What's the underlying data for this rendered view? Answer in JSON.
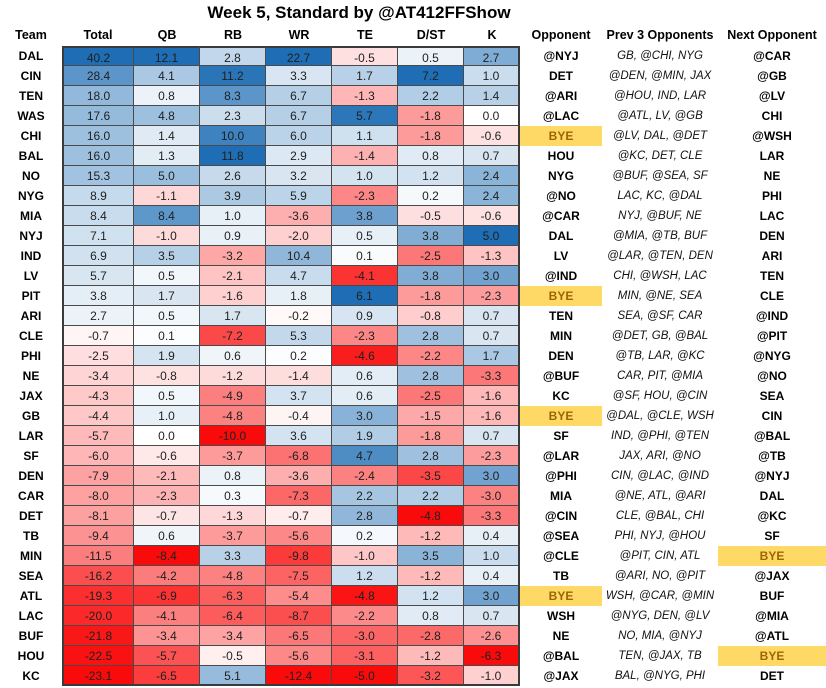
{
  "title": "Week 5, Standard by @AT412FFShow",
  "columns": [
    "Team",
    "Total",
    "QB",
    "RB",
    "WR",
    "TE",
    "D/ST",
    "K",
    "Opponent",
    "Prev 3 Opponents",
    "Next Opponent"
  ],
  "colors": {
    "scale_max_blue": "#1F6EB5",
    "scale_mid_white": "#FFFFFF",
    "scale_min_red": "#FA0B0B",
    "bye_bg": "#FFD966",
    "bye_text": "#9C6500",
    "grid_border": "#4a4a4a"
  },
  "chart_data": {
    "type": "heatmap",
    "title": "Week 5, Standard by @AT412FFShow",
    "columns": [
      "Team",
      "Total",
      "QB",
      "RB",
      "WR",
      "TE",
      "D/ST",
      "K",
      "Opponent",
      "Prev 3 Opponents",
      "Next Opponent"
    ],
    "numeric_columns": [
      "Total",
      "QB",
      "RB",
      "WR",
      "TE",
      "D/ST",
      "K"
    ],
    "color_scale": {
      "scope": "per-column",
      "midpoint": 0,
      "min_color": "#FA0B0B",
      "mid_color": "#FFFFFF",
      "max_color": "#1F6EB5"
    },
    "bye_highlight": "BYE",
    "rows": [
      [
        "DAL",
        "40.2",
        "12.1",
        "2.8",
        "22.7",
        "-0.5",
        "0.5",
        "2.7",
        "@NYJ",
        "GB, @CHI, NYG",
        "@CAR"
      ],
      [
        "CIN",
        "28.4",
        "4.1",
        "11.2",
        "3.3",
        "1.7",
        "7.2",
        "1.0",
        "DET",
        "@DEN, @MIN, JAX",
        "@GB"
      ],
      [
        "TEN",
        "18.0",
        "0.8",
        "8.3",
        "6.7",
        "-1.3",
        "2.2",
        "1.4",
        "@ARI",
        "@HOU, IND, LAR",
        "@LV"
      ],
      [
        "WAS",
        "17.6",
        "4.8",
        "2.3",
        "6.7",
        "5.7",
        "-1.8",
        "0.0",
        "@LAC",
        "@ATL, LV, @GB",
        "CHI"
      ],
      [
        "CHI",
        "16.0",
        "1.4",
        "10.0",
        "6.0",
        "1.1",
        "-1.8",
        "-0.6",
        "BYE",
        "@LV, DAL, @DET",
        "@WSH"
      ],
      [
        "BAL",
        "16.0",
        "1.3",
        "11.8",
        "2.9",
        "-1.4",
        "0.8",
        "0.7",
        "HOU",
        "@KC, DET, CLE",
        "LAR"
      ],
      [
        "NO",
        "15.3",
        "5.0",
        "2.6",
        "3.2",
        "1.0",
        "1.2",
        "2.4",
        "NYG",
        "@BUF, @SEA, SF",
        "NE"
      ],
      [
        "NYG",
        "8.9",
        "-1.1",
        "3.9",
        "5.9",
        "-2.3",
        "0.2",
        "2.4",
        "@NO",
        "LAC, KC, @DAL",
        "PHI"
      ],
      [
        "MIA",
        "8.4",
        "8.4",
        "1.0",
        "-3.6",
        "3.8",
        "-0.5",
        "-0.6",
        "@CAR",
        "NYJ, @BUF, NE",
        "LAC"
      ],
      [
        "NYJ",
        "7.1",
        "-1.0",
        "0.9",
        "-2.0",
        "0.5",
        "3.8",
        "5.0",
        "DAL",
        "@MIA, @TB, BUF",
        "DEN"
      ],
      [
        "IND",
        "6.9",
        "3.5",
        "-3.2",
        "10.4",
        "0.1",
        "-2.5",
        "-1.3",
        "LV",
        "@LAR, @TEN, DEN",
        "ARI"
      ],
      [
        "LV",
        "5.7",
        "0.5",
        "-2.1",
        "4.7",
        "-4.1",
        "3.8",
        "3.0",
        "@IND",
        "CHI, @WSH, LAC",
        "TEN"
      ],
      [
        "PIT",
        "3.8",
        "1.7",
        "-1.6",
        "1.8",
        "6.1",
        "-1.8",
        "-2.3",
        "BYE",
        "MIN, @NE, SEA",
        "CLE"
      ],
      [
        "ARI",
        "2.7",
        "0.5",
        "1.7",
        "-0.2",
        "0.9",
        "-0.8",
        "0.7",
        "TEN",
        "SEA, @SF, CAR",
        "@IND"
      ],
      [
        "CLE",
        "-0.7",
        "0.1",
        "-7.2",
        "5.3",
        "-2.3",
        "2.8",
        "0.7",
        "MIN",
        "@DET, GB, @BAL",
        "@PIT"
      ],
      [
        "PHI",
        "-2.5",
        "1.9",
        "0.6",
        "0.2",
        "-4.6",
        "-2.2",
        "1.7",
        "DEN",
        "@TB, LAR, @KC",
        "@NYG"
      ],
      [
        "NE",
        "-3.4",
        "-0.8",
        "-1.2",
        "-1.4",
        "0.6",
        "2.8",
        "-3.3",
        "@BUF",
        "CAR, PIT, @MIA",
        "@NO"
      ],
      [
        "JAX",
        "-4.3",
        "0.5",
        "-4.9",
        "3.7",
        "0.6",
        "-2.5",
        "-1.6",
        "KC",
        "@SF, HOU, @CIN",
        "SEA"
      ],
      [
        "GB",
        "-4.4",
        "1.0",
        "-4.8",
        "-0.4",
        "3.0",
        "-1.5",
        "-1.6",
        "BYE",
        "@DAL, @CLE, WSH",
        "CIN"
      ],
      [
        "LAR",
        "-5.7",
        "0.0",
        "-10.0",
        "3.6",
        "1.9",
        "-1.8",
        "0.7",
        "SF",
        "IND, @PHI, @TEN",
        "@BAL"
      ],
      [
        "SF",
        "-6.0",
        "-0.6",
        "-3.7",
        "-6.8",
        "4.7",
        "2.8",
        "-2.3",
        "@LAR",
        "JAX, ARI, @NO",
        "@TB"
      ],
      [
        "DEN",
        "-7.9",
        "-2.1",
        "0.8",
        "-3.6",
        "-2.4",
        "-3.5",
        "3.0",
        "@PHI",
        "CIN, @LAC, @IND",
        "@NYJ"
      ],
      [
        "CAR",
        "-8.0",
        "-2.3",
        "0.3",
        "-7.3",
        "2.2",
        "2.2",
        "-3.0",
        "MIA",
        "@NE, ATL, @ARI",
        "DAL"
      ],
      [
        "DET",
        "-8.1",
        "-0.7",
        "-1.3",
        "-0.7",
        "2.8",
        "-4.8",
        "-3.3",
        "@CIN",
        "CLE, @BAL, CHI",
        "@KC"
      ],
      [
        "TB",
        "-9.4",
        "0.6",
        "-3.7",
        "-5.6",
        "0.2",
        "-1.2",
        "0.4",
        "@SEA",
        "PHI, NYJ, @HOU",
        "SF"
      ],
      [
        "MIN",
        "-11.5",
        "-8.4",
        "3.3",
        "-9.8",
        "-1.0",
        "3.5",
        "1.0",
        "@CLE",
        "@PIT, CIN, ATL",
        "BYE"
      ],
      [
        "SEA",
        "-16.2",
        "-4.2",
        "-4.8",
        "-7.5",
        "1.2",
        "-1.2",
        "0.4",
        "TB",
        "@ARI, NO, @PIT",
        "@JAX"
      ],
      [
        "ATL",
        "-19.3",
        "-6.9",
        "-6.3",
        "-5.4",
        "-4.8",
        "1.2",
        "3.0",
        "BYE",
        "WSH, @CAR, @MIN",
        "BUF"
      ],
      [
        "LAC",
        "-20.0",
        "-4.1",
        "-6.4",
        "-8.7",
        "-2.2",
        "0.8",
        "0.7",
        "WSH",
        "@NYG, DEN, @LV",
        "@MIA"
      ],
      [
        "BUF",
        "-21.8",
        "-3.4",
        "-3.4",
        "-6.5",
        "-3.0",
        "-2.8",
        "-2.6",
        "NE",
        "NO, MIA, @NYJ",
        "@ATL"
      ],
      [
        "HOU",
        "-22.5",
        "-5.7",
        "-0.5",
        "-5.6",
        "-3.1",
        "-1.2",
        "-6.3",
        "@BAL",
        "TEN, @JAX, TB",
        "BYE"
      ],
      [
        "KC",
        "-23.1",
        "-6.5",
        "5.1",
        "-12.4",
        "-5.0",
        "-3.2",
        "-1.0",
        "@JAX",
        "BAL, @NYG, PHI",
        "DET"
      ]
    ]
  }
}
